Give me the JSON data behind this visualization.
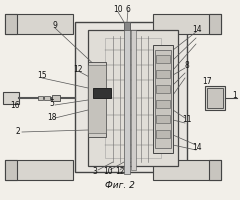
{
  "title": "Фиг. 2",
  "bg_color": "#f2efe9",
  "line_color": "#444444",
  "dark_color": "#222222",
  "gray1": "#d8d5cf",
  "gray2": "#c8c5bf",
  "gray3": "#e8e5e0"
}
